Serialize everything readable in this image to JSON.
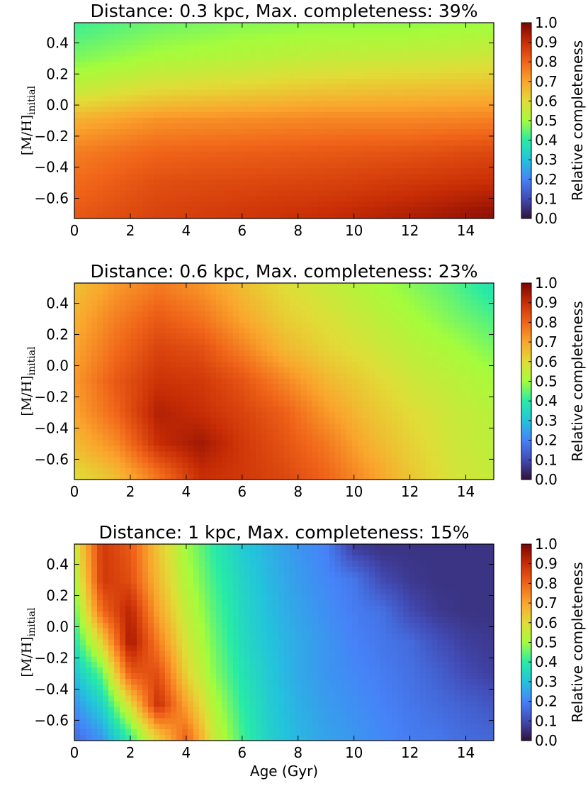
{
  "chart_data": [
    {
      "type": "heatmap",
      "title": "Distance: 0.3 kpc, Max. completeness: 39%",
      "ylabel_main": "[M/H]",
      "ylabel_sub": "initial",
      "xlabel": "",
      "xlim": [
        0,
        15
      ],
      "ylim": [
        -0.73,
        0.53
      ],
      "xticks": [
        0,
        2,
        4,
        6,
        8,
        10,
        12,
        14
      ],
      "yticks": [
        0.4,
        0.2,
        0.0,
        -0.2,
        -0.4,
        -0.6
      ],
      "ytick_labels": [
        "0.4",
        "0.2",
        "0.0",
        "−0.2",
        "−0.4",
        "−0.6"
      ],
      "colorbar_label": "Relative completeness",
      "colorbar_ticks": [
        "1.0",
        "0.9",
        "0.8",
        "0.7",
        "0.6",
        "0.5",
        "0.4",
        "0.3",
        "0.2",
        "0.1",
        "0.0"
      ],
      "x_grid": [
        0,
        3,
        6,
        9,
        12,
        15
      ],
      "y_grid": [
        0.5,
        0.3,
        0.1,
        -0.1,
        -0.3,
        -0.5,
        -0.7
      ],
      "z_grid": [
        [
          0.42,
          0.46,
          0.48,
          0.49,
          0.49,
          0.5
        ],
        [
          0.47,
          0.51,
          0.53,
          0.55,
          0.56,
          0.57
        ],
        [
          0.55,
          0.6,
          0.62,
          0.64,
          0.65,
          0.66
        ],
        [
          0.68,
          0.73,
          0.74,
          0.75,
          0.75,
          0.76
        ],
        [
          0.76,
          0.8,
          0.81,
          0.82,
          0.83,
          0.85
        ],
        [
          0.79,
          0.84,
          0.85,
          0.86,
          0.88,
          0.9
        ],
        [
          0.82,
          0.86,
          0.88,
          0.9,
          0.93,
          0.97
        ]
      ]
    },
    {
      "type": "heatmap",
      "title": "Distance: 0.6 kpc, Max. completeness: 23%",
      "ylabel_main": "[M/H]",
      "ylabel_sub": "initial",
      "xlabel": "",
      "xlim": [
        0,
        15
      ],
      "ylim": [
        -0.73,
        0.53
      ],
      "xticks": [
        0,
        2,
        4,
        6,
        8,
        10,
        12,
        14
      ],
      "yticks": [
        0.4,
        0.2,
        0.0,
        -0.2,
        -0.4,
        -0.6
      ],
      "ytick_labels": [
        "0.4",
        "0.2",
        "0.0",
        "−0.2",
        "−0.4",
        "−0.6"
      ],
      "colorbar_label": "Relative completeness",
      "colorbar_ticks": [
        "1.0",
        "0.9",
        "0.8",
        "0.7",
        "0.6",
        "0.5",
        "0.4",
        "0.3",
        "0.2",
        "0.1",
        "0.0"
      ],
      "x_grid": [
        0,
        1.5,
        3,
        4.5,
        6,
        7.5,
        9,
        10.5,
        12,
        13.5,
        15
      ],
      "y_grid": [
        0.5,
        0.3,
        0.1,
        -0.1,
        -0.3,
        -0.5,
        -0.7
      ],
      "z_grid": [
        [
          0.65,
          0.72,
          0.77,
          0.73,
          0.66,
          0.6,
          0.56,
          0.52,
          0.48,
          0.44,
          0.38
        ],
        [
          0.68,
          0.76,
          0.82,
          0.78,
          0.7,
          0.63,
          0.59,
          0.55,
          0.51,
          0.47,
          0.43
        ],
        [
          0.7,
          0.79,
          0.86,
          0.84,
          0.76,
          0.67,
          0.62,
          0.58,
          0.54,
          0.51,
          0.47
        ],
        [
          0.72,
          0.82,
          0.89,
          0.88,
          0.83,
          0.75,
          0.67,
          0.62,
          0.57,
          0.54,
          0.51
        ],
        [
          0.7,
          0.8,
          0.93,
          0.9,
          0.86,
          0.81,
          0.72,
          0.65,
          0.6,
          0.56,
          0.53
        ],
        [
          0.66,
          0.74,
          0.9,
          0.95,
          0.88,
          0.83,
          0.77,
          0.68,
          0.62,
          0.57,
          0.54
        ],
        [
          0.6,
          0.66,
          0.78,
          0.9,
          0.88,
          0.85,
          0.8,
          0.72,
          0.64,
          0.58,
          0.55
        ]
      ]
    },
    {
      "type": "heatmap",
      "title": "Distance: 1 kpc, Max. completeness: 15%",
      "ylabel_main": "[M/H]",
      "ylabel_sub": "initial",
      "xlabel": "Age (Gyr)",
      "xlim": [
        0,
        15
      ],
      "ylim": [
        -0.73,
        0.53
      ],
      "xticks": [
        0,
        2,
        4,
        6,
        8,
        10,
        12,
        14
      ],
      "yticks": [
        0.4,
        0.2,
        0.0,
        -0.2,
        -0.4,
        -0.6
      ],
      "ytick_labels": [
        "0.4",
        "0.2",
        "0.0",
        "−0.2",
        "−0.4",
        "−0.6"
      ],
      "colorbar_label": "Relative completeness",
      "colorbar_ticks": [
        "1.0",
        "0.9",
        "0.8",
        "0.7",
        "0.6",
        "0.5",
        "0.4",
        "0.3",
        "0.2",
        "0.1",
        "0.0"
      ],
      "x_grid": [
        0,
        1,
        2,
        3,
        4,
        5,
        6,
        7,
        8,
        9,
        10,
        11,
        12,
        13,
        14,
        15
      ],
      "y_grid": [
        0.5,
        0.3,
        0.1,
        -0.1,
        -0.3,
        -0.5,
        -0.7
      ],
      "z_grid": [
        [
          0.55,
          0.88,
          0.82,
          0.64,
          0.5,
          0.4,
          0.32,
          0.27,
          0.23,
          0.2,
          0.08,
          0.06,
          0.06,
          0.06,
          0.06,
          0.06
        ],
        [
          0.5,
          0.88,
          0.84,
          0.66,
          0.52,
          0.42,
          0.34,
          0.28,
          0.24,
          0.21,
          0.18,
          0.1,
          0.07,
          0.06,
          0.06,
          0.06
        ],
        [
          0.44,
          0.8,
          0.92,
          0.7,
          0.55,
          0.44,
          0.35,
          0.29,
          0.25,
          0.22,
          0.19,
          0.17,
          0.1,
          0.07,
          0.06,
          0.06
        ],
        [
          0.38,
          0.62,
          0.95,
          0.76,
          0.58,
          0.46,
          0.36,
          0.3,
          0.26,
          0.23,
          0.2,
          0.18,
          0.16,
          0.11,
          0.08,
          0.07
        ],
        [
          0.3,
          0.45,
          0.82,
          0.84,
          0.62,
          0.48,
          0.38,
          0.31,
          0.26,
          0.23,
          0.21,
          0.19,
          0.17,
          0.14,
          0.1,
          0.08
        ],
        [
          0.22,
          0.34,
          0.6,
          0.9,
          0.7,
          0.52,
          0.4,
          0.32,
          0.27,
          0.24,
          0.22,
          0.2,
          0.18,
          0.16,
          0.14,
          0.12
        ],
        [
          0.16,
          0.24,
          0.42,
          0.64,
          0.8,
          0.56,
          0.42,
          0.33,
          0.28,
          0.25,
          0.23,
          0.21,
          0.19,
          0.18,
          0.16,
          0.15
        ]
      ]
    }
  ]
}
